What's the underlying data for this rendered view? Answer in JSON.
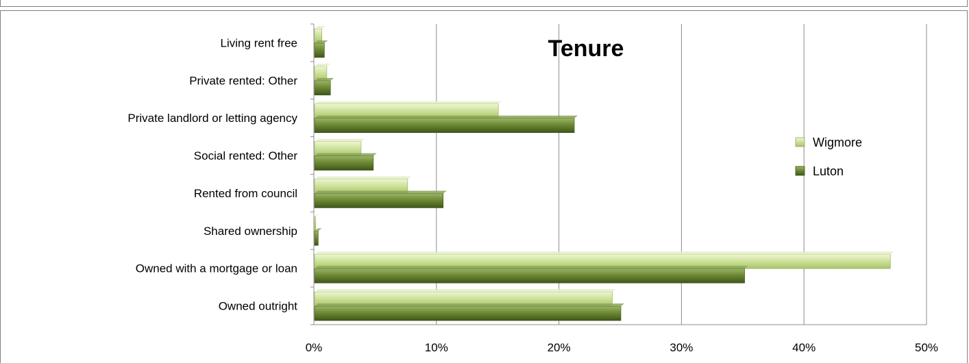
{
  "chart_data": {
    "type": "bar",
    "orientation": "horizontal",
    "title": "Tenure",
    "categories": [
      "Living rent free",
      "Private rented: Other",
      "Private landlord or letting agency",
      "Social rented: Other",
      "Rented from council",
      "Shared ownership",
      "Owned with a mortgage  or loan",
      "Owned outright"
    ],
    "series": [
      {
        "name": "Wigmore",
        "color": "#c6dc8e",
        "values": [
          0.6,
          1.0,
          15.0,
          3.8,
          7.6,
          0.1,
          47.0,
          24.3
        ]
      },
      {
        "name": "Luton",
        "color": "#5f7a2c",
        "values": [
          0.8,
          1.3,
          21.2,
          4.8,
          10.5,
          0.3,
          35.1,
          25.0
        ]
      }
    ],
    "x_ticks": [
      "0%",
      "10%",
      "20%",
      "30%",
      "40%",
      "50%"
    ],
    "xlim": [
      0,
      50
    ],
    "grid": true,
    "legend_position": "right"
  }
}
